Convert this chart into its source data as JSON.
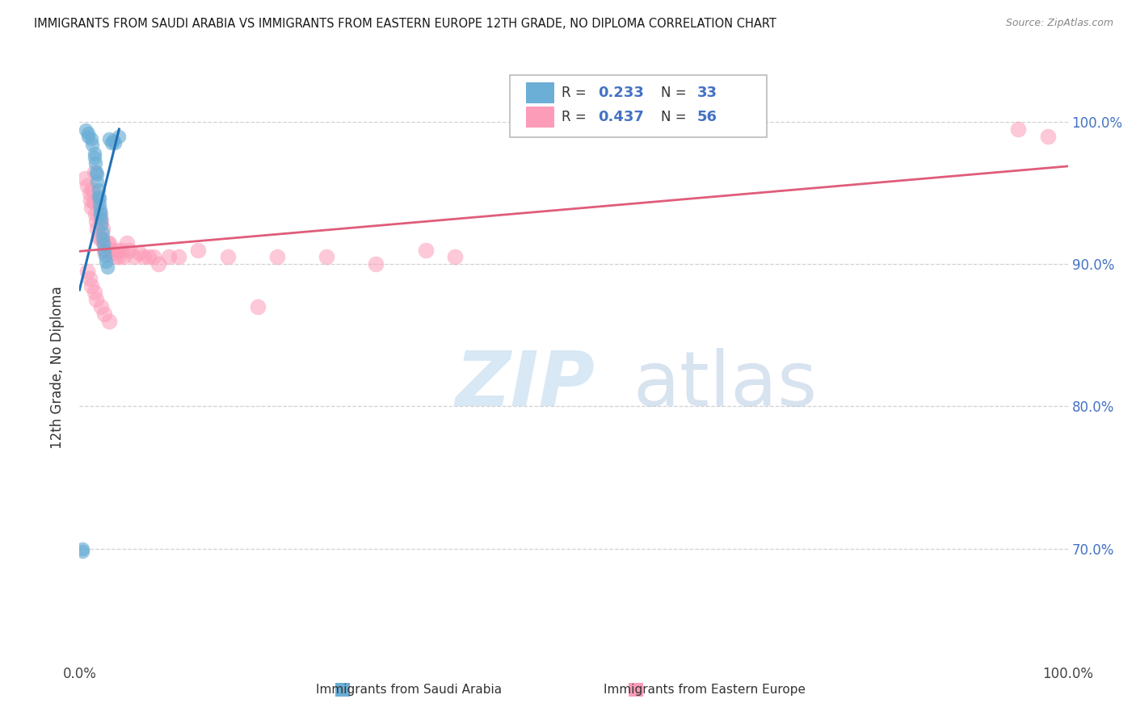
{
  "title": "IMMIGRANTS FROM SAUDI ARABIA VS IMMIGRANTS FROM EASTERN EUROPE 12TH GRADE, NO DIPLOMA CORRELATION CHART",
  "source": "Source: ZipAtlas.com",
  "ylabel": "12th Grade, No Diploma",
  "legend_label1": "Immigrants from Saudi Arabia",
  "legend_label2": "Immigrants from Eastern Europe",
  "R1": 0.233,
  "N1": 33,
  "R2": 0.437,
  "N2": 56,
  "color1": "#6baed6",
  "color2": "#fc9cb8",
  "trendline1_color": "#2171b5",
  "trendline2_color": "#e05c7a",
  "watermark_zip": "ZIP",
  "watermark_atlas": "atlas",
  "ytick_labels": [
    "100.0%",
    "90.0%",
    "80.0%",
    "70.0%"
  ],
  "ytick_values": [
    1.0,
    0.9,
    0.8,
    0.7
  ],
  "xlim": [
    0.0,
    1.0
  ],
  "ylim": [
    0.62,
    1.035
  ],
  "saudi_x": [
    0.006,
    0.009,
    0.009,
    0.012,
    0.013,
    0.015,
    0.015,
    0.016,
    0.017,
    0.018,
    0.018,
    0.019,
    0.019,
    0.02,
    0.02,
    0.021,
    0.021,
    0.022,
    0.022,
    0.023,
    0.023,
    0.024,
    0.025,
    0.026,
    0.027,
    0.028,
    0.03,
    0.032,
    0.034,
    0.036,
    0.04,
    0.003,
    0.003
  ],
  "saudi_y": [
    0.994,
    0.99,
    0.992,
    0.988,
    0.984,
    0.978,
    0.975,
    0.971,
    0.965,
    0.963,
    0.958,
    0.952,
    0.948,
    0.946,
    0.942,
    0.938,
    0.935,
    0.932,
    0.928,
    0.922,
    0.918,
    0.914,
    0.91,
    0.906,
    0.902,
    0.898,
    0.988,
    0.985,
    0.987,
    0.985,
    0.99,
    0.7,
    0.698
  ],
  "eastern_x": [
    0.005,
    0.008,
    0.01,
    0.011,
    0.012,
    0.013,
    0.014,
    0.015,
    0.016,
    0.017,
    0.018,
    0.019,
    0.02,
    0.021,
    0.022,
    0.023,
    0.024,
    0.025,
    0.026,
    0.028,
    0.03,
    0.032,
    0.034,
    0.036,
    0.038,
    0.04,
    0.042,
    0.045,
    0.048,
    0.05,
    0.055,
    0.06,
    0.065,
    0.07,
    0.075,
    0.08,
    0.09,
    0.1,
    0.12,
    0.15,
    0.18,
    0.2,
    0.25,
    0.3,
    0.35,
    0.38,
    0.95,
    0.98,
    0.008,
    0.01,
    0.012,
    0.015,
    0.017,
    0.022,
    0.025,
    0.03
  ],
  "eastern_y": [
    0.96,
    0.955,
    0.95,
    0.945,
    0.94,
    0.952,
    0.944,
    0.965,
    0.935,
    0.93,
    0.925,
    0.92,
    0.918,
    0.935,
    0.93,
    0.925,
    0.915,
    0.91,
    0.908,
    0.915,
    0.915,
    0.91,
    0.908,
    0.905,
    0.91,
    0.905,
    0.91,
    0.905,
    0.915,
    0.91,
    0.905,
    0.908,
    0.905,
    0.905,
    0.905,
    0.9,
    0.905,
    0.905,
    0.91,
    0.905,
    0.87,
    0.905,
    0.905,
    0.9,
    0.91,
    0.905,
    0.995,
    0.99,
    0.895,
    0.89,
    0.885,
    0.88,
    0.875,
    0.87,
    0.865,
    0.86
  ]
}
